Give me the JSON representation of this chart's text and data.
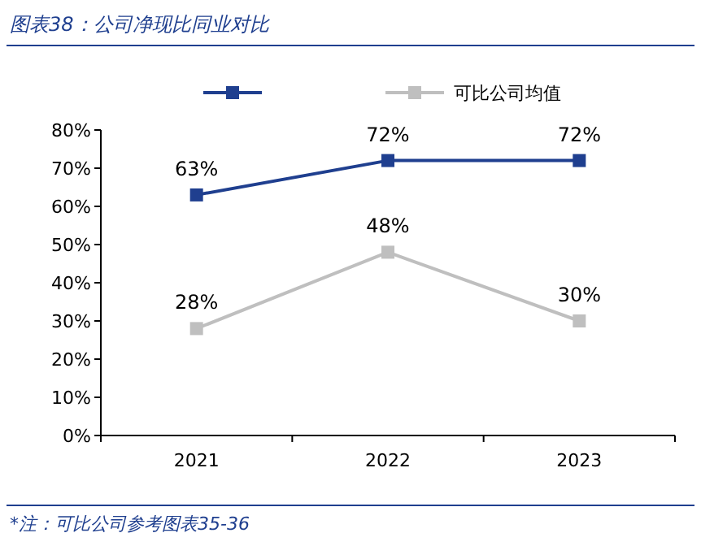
{
  "chart_data": {
    "type": "line",
    "title": "图表38：公司净现比同业对比",
    "categories": [
      "2021",
      "2022",
      "2023"
    ],
    "series": [
      {
        "color": "#1f3f8f",
        "values": [
          63,
          72,
          72
        ],
        "value_labels": [
          "63%",
          "72%",
          "72%"
        ]
      },
      {
        "name": "可比公司均值",
        "color": "#bfbfbf",
        "values": [
          28,
          48,
          30
        ],
        "value_labels": [
          "28%",
          "48%",
          "30%"
        ]
      }
    ],
    "ylim": [
      0,
      80
    ],
    "yticks": [
      {
        "value": 0,
        "label": "0%"
      },
      {
        "value": 10,
        "label": "10%"
      },
      {
        "value": 20,
        "label": "20%"
      },
      {
        "value": 30,
        "label": "30%"
      },
      {
        "value": 40,
        "label": "40%"
      },
      {
        "value": 50,
        "label": "50%"
      },
      {
        "value": 60,
        "label": "60%"
      },
      {
        "value": 70,
        "label": "70%"
      },
      {
        "value": 80,
        "label": "80%"
      }
    ],
    "marker": "square",
    "legend": "top",
    "grid": false,
    "annotations": [
      "*注：可比公司参考图表35-36"
    ]
  }
}
